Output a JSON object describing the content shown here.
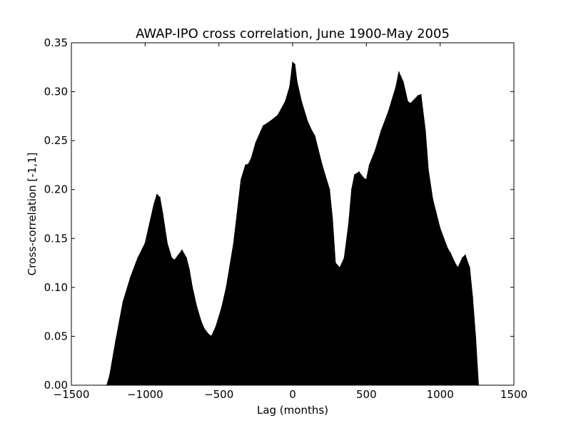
{
  "chart_data": {
    "type": "area",
    "title": "AWAP-IPO cross correlation, June 1900-May 2005",
    "xlabel": "Lag (months)",
    "ylabel": "Cross-correlation [-1,1]",
    "xlim": [
      -1500,
      1500
    ],
    "ylim": [
      0,
      0.35
    ],
    "xticks": [
      -1500,
      -1000,
      -500,
      0,
      500,
      1000,
      1500
    ],
    "xtick_labels": [
      "−1500",
      "−1000",
      "−500",
      "0",
      "500",
      "1000",
      "1500"
    ],
    "yticks": [
      0.0,
      0.05,
      0.1,
      0.15,
      0.2,
      0.25,
      0.3,
      0.35
    ],
    "ytick_labels": [
      "0.00",
      "0.05",
      "0.10",
      "0.15",
      "0.20",
      "0.25",
      "0.30",
      "0.35"
    ],
    "fill_color": "#000000",
    "series": [
      {
        "name": "cross-correlation",
        "x": [
          -1260,
          -1240,
          -1200,
          -1150,
          -1100,
          -1050,
          -1000,
          -970,
          -940,
          -920,
          -900,
          -880,
          -850,
          -820,
          -800,
          -780,
          -750,
          -720,
          -700,
          -680,
          -650,
          -620,
          -600,
          -570,
          -550,
          -520,
          -500,
          -480,
          -450,
          -400,
          -350,
          -320,
          -300,
          -280,
          -250,
          -200,
          -150,
          -100,
          -50,
          -20,
          0,
          15,
          30,
          60,
          100,
          130,
          150,
          200,
          250,
          270,
          290,
          320,
          350,
          380,
          400,
          420,
          450,
          480,
          500,
          520,
          560,
          600,
          650,
          700,
          720,
          750,
          780,
          800,
          850,
          870,
          900,
          920,
          950,
          1000,
          1050,
          1070,
          1100,
          1120,
          1150,
          1170,
          1200,
          1220,
          1240,
          1260
        ],
        "y": [
          0.0,
          0.01,
          0.045,
          0.085,
          0.11,
          0.13,
          0.145,
          0.165,
          0.185,
          0.195,
          0.192,
          0.175,
          0.145,
          0.13,
          0.128,
          0.132,
          0.138,
          0.13,
          0.118,
          0.1,
          0.08,
          0.065,
          0.058,
          0.052,
          0.05,
          0.06,
          0.07,
          0.08,
          0.1,
          0.145,
          0.21,
          0.225,
          0.226,
          0.232,
          0.248,
          0.265,
          0.27,
          0.276,
          0.29,
          0.305,
          0.33,
          0.328,
          0.31,
          0.29,
          0.27,
          0.26,
          0.255,
          0.225,
          0.2,
          0.17,
          0.125,
          0.12,
          0.13,
          0.165,
          0.2,
          0.215,
          0.218,
          0.212,
          0.21,
          0.225,
          0.24,
          0.26,
          0.28,
          0.305,
          0.32,
          0.31,
          0.29,
          0.288,
          0.296,
          0.297,
          0.26,
          0.22,
          0.19,
          0.16,
          0.14,
          0.135,
          0.125,
          0.12,
          0.13,
          0.133,
          0.12,
          0.09,
          0.05,
          0.0
        ]
      }
    ]
  }
}
